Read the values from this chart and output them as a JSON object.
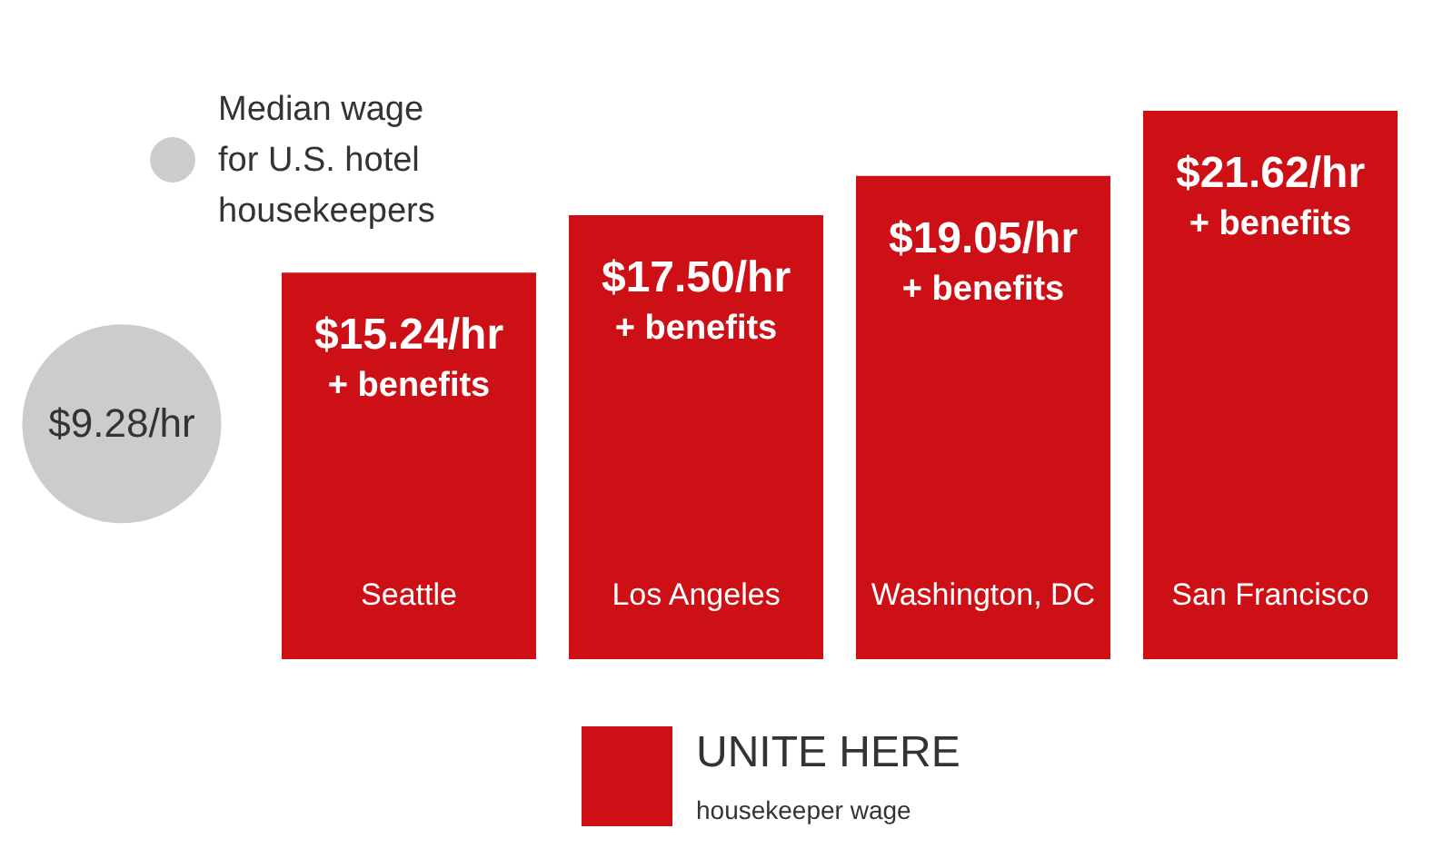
{
  "chart_data": {
    "type": "bar",
    "categories": [
      null,
      "Seattle",
      "Los Angeles",
      "Washington, DC",
      "San Francisco"
    ],
    "series": [
      {
        "name": "Median wage\nfor U.S. hotel\nhousekeepers",
        "type": "scatter",
        "marker": "circle",
        "color": "#cccccc",
        "values": [
          9.28,
          null,
          null,
          null,
          null
        ],
        "value_labels": [
          "$9.28/hr",
          null,
          null,
          null,
          null
        ]
      },
      {
        "name": "UNITE HERE\nhousekeeper wage",
        "color": "#cc1016",
        "values": [
          null,
          15.24,
          17.5,
          19.05,
          21.62
        ],
        "value_labels": [
          null,
          "$15.24/hr",
          "$17.50/hr",
          "$19.05/hr",
          "$21.62/hr"
        ]
      }
    ],
    "annotations": [
      {
        "text": "+ benefits",
        "x": "Seattle",
        "y": 15.24
      },
      {
        "text": "+ benefits",
        "x": "Los Angeles",
        "y": 17.5
      },
      {
        "text": "+ benefits",
        "x": "Washington, DC",
        "y": 19.05
      },
      {
        "text": "+ benefits",
        "x": "San Francisco",
        "y": 21.62
      }
    ],
    "legend": "bottom",
    "tick_labels": false
  }
}
